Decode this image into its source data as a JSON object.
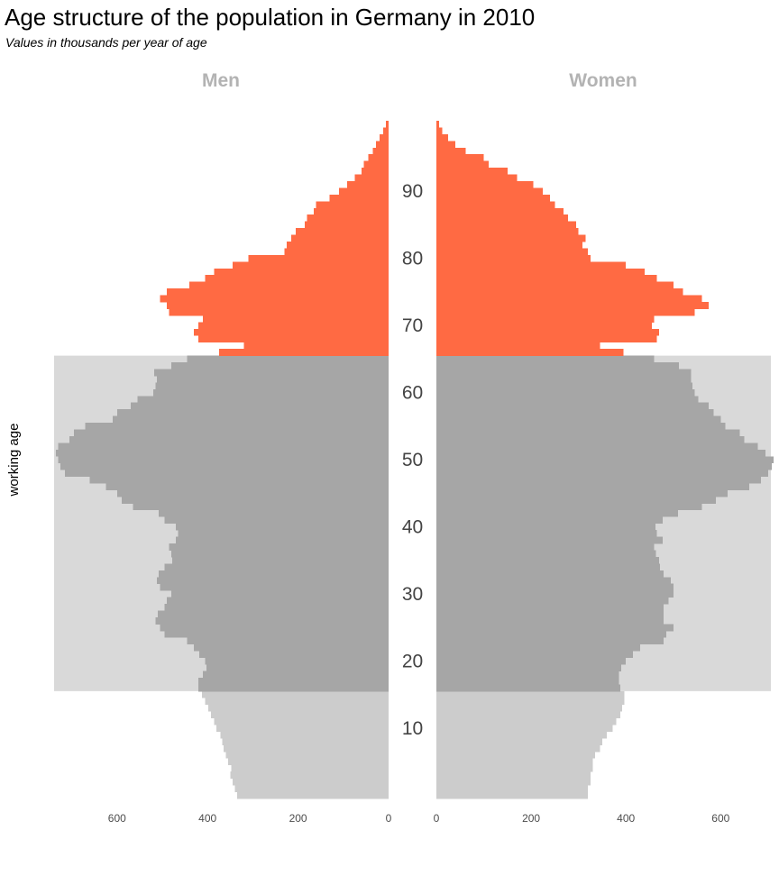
{
  "title": "Age structure of the population in Germany in 2010",
  "subtitle": "Values in thousands per year of age",
  "chart_data": {
    "type": "bar",
    "orientation": "horizontal population pyramid",
    "panels": [
      "Men",
      "Women"
    ],
    "y_axis": {
      "ticks": [
        10,
        20,
        30,
        40,
        50,
        60,
        70,
        80,
        90
      ],
      "range": [
        0,
        100
      ]
    },
    "x_axis_men": {
      "ticks": [
        600,
        400,
        200,
        0
      ],
      "range": [
        740,
        0
      ]
    },
    "x_axis_women": {
      "ticks": [
        0,
        200,
        400,
        600
      ],
      "range": [
        0,
        710
      ]
    },
    "band": {
      "label": "working age",
      "from_age": 15,
      "to_age": 65,
      "color": "#d9d9d9"
    },
    "colors": {
      "young": "#cccccc",
      "working": "#a6a6a6",
      "old": "#ff6a43"
    },
    "groups": [
      {
        "name": "young",
        "ages": "0-15"
      },
      {
        "name": "working",
        "ages": "16-65"
      },
      {
        "name": "old",
        "ages": "66-100"
      }
    ],
    "ages": [
      0,
      1,
      2,
      3,
      4,
      5,
      6,
      7,
      8,
      9,
      10,
      11,
      12,
      13,
      14,
      15,
      16,
      17,
      18,
      19,
      20,
      21,
      22,
      23,
      24,
      25,
      26,
      27,
      28,
      29,
      30,
      31,
      32,
      33,
      34,
      35,
      36,
      37,
      38,
      39,
      40,
      41,
      42,
      43,
      44,
      45,
      46,
      47,
      48,
      49,
      50,
      51,
      52,
      53,
      54,
      55,
      56,
      57,
      58,
      59,
      60,
      61,
      62,
      63,
      64,
      65,
      66,
      67,
      68,
      69,
      70,
      71,
      72,
      73,
      74,
      75,
      76,
      77,
      78,
      79,
      80,
      81,
      82,
      83,
      84,
      85,
      86,
      87,
      88,
      89,
      90,
      91,
      92,
      93,
      94,
      95,
      96,
      97,
      98,
      99,
      100
    ],
    "series": [
      {
        "name": "Men",
        "values": [
          335,
          340,
          345,
          350,
          348,
          355,
          360,
          365,
          368,
          372,
          380,
          385,
          392,
          398,
          405,
          412,
          420,
          420,
          410,
          402,
          405,
          418,
          430,
          445,
          495,
          505,
          515,
          510,
          495,
          490,
          480,
          505,
          512,
          508,
          495,
          478,
          480,
          485,
          470,
          465,
          470,
          495,
          508,
          565,
          590,
          600,
          625,
          660,
          715,
          725,
          730,
          735,
          730,
          705,
          695,
          670,
          610,
          600,
          570,
          555,
          520,
          515,
          512,
          518,
          480,
          445,
          375,
          320,
          420,
          430,
          420,
          410,
          485,
          490,
          505,
          490,
          440,
          405,
          385,
          345,
          310,
          230,
          225,
          215,
          205,
          185,
          180,
          165,
          160,
          130,
          110,
          92,
          75,
          60,
          55,
          45,
          35,
          28,
          20,
          12,
          6
        ]
      },
      {
        "name": "Women",
        "values": [
          320,
          320,
          325,
          325,
          330,
          330,
          335,
          345,
          350,
          360,
          372,
          380,
          388,
          392,
          397,
          397,
          388,
          385,
          385,
          390,
          400,
          415,
          430,
          480,
          485,
          500,
          480,
          480,
          480,
          490,
          500,
          500,
          495,
          480,
          472,
          470,
          463,
          460,
          478,
          465,
          462,
          478,
          510,
          560,
          590,
          615,
          660,
          685,
          700,
          708,
          712,
          695,
          678,
          650,
          640,
          610,
          600,
          585,
          575,
          553,
          545,
          540,
          538,
          538,
          512,
          460,
          395,
          345,
          465,
          470,
          455,
          460,
          545,
          575,
          560,
          520,
          500,
          465,
          440,
          400,
          325,
          320,
          308,
          315,
          300,
          295,
          278,
          268,
          250,
          240,
          225,
          205,
          170,
          150,
          110,
          100,
          62,
          40,
          25,
          12,
          6
        ]
      }
    ]
  },
  "labels": {
    "men": "Men",
    "women": "Women",
    "working_age": "working age",
    "men_ticks": [
      "600",
      "400",
      "200",
      "0"
    ],
    "women_ticks": [
      "0",
      "200",
      "400",
      "600"
    ],
    "age_ticks": [
      "10",
      "20",
      "30",
      "40",
      "50",
      "60",
      "70",
      "80",
      "90"
    ]
  }
}
